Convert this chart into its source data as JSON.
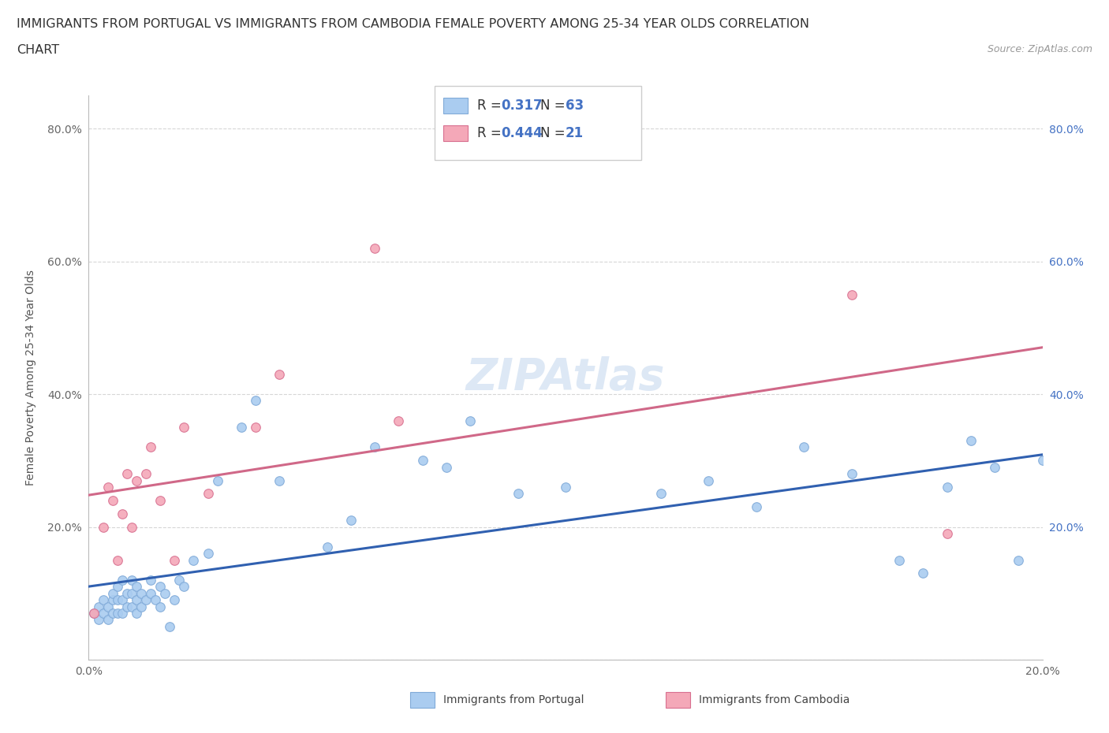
{
  "title_line1": "IMMIGRANTS FROM PORTUGAL VS IMMIGRANTS FROM CAMBODIA FEMALE POVERTY AMONG 25-34 YEAR OLDS CORRELATION",
  "title_line2": "CHART",
  "source_text": "Source: ZipAtlas.com",
  "ylabel": "Female Poverty Among 25-34 Year Olds",
  "xlim": [
    0.0,
    0.2
  ],
  "ylim": [
    0.0,
    0.85
  ],
  "yticks": [
    0.0,
    0.2,
    0.4,
    0.6,
    0.8
  ],
  "xticks": [
    0.0,
    0.05,
    0.1,
    0.15,
    0.2
  ],
  "ytick_labels_left": [
    "",
    "20.0%",
    "40.0%",
    "60.0%",
    "80.0%"
  ],
  "ytick_labels_right": [
    "",
    "20.0%",
    "40.0%",
    "60.0%",
    "80.0%"
  ],
  "xtick_labels": [
    "0.0%",
    "",
    "",
    "",
    "20.0%"
  ],
  "watermark": "ZIPAtlas",
  "portugal_color": "#aaccf0",
  "portugal_edge": "#80aad8",
  "cambodia_color": "#f4a8b8",
  "cambodia_edge": "#d87090",
  "portugal_line_color": "#3060b0",
  "cambodia_line_color": "#d06888",
  "R_portugal": 0.317,
  "N_portugal": 63,
  "R_cambodia": 0.444,
  "N_cambodia": 21,
  "portugal_x": [
    0.001,
    0.002,
    0.002,
    0.003,
    0.003,
    0.004,
    0.004,
    0.005,
    0.005,
    0.005,
    0.006,
    0.006,
    0.006,
    0.007,
    0.007,
    0.007,
    0.008,
    0.008,
    0.009,
    0.009,
    0.009,
    0.01,
    0.01,
    0.01,
    0.011,
    0.011,
    0.012,
    0.013,
    0.013,
    0.014,
    0.015,
    0.015,
    0.016,
    0.017,
    0.018,
    0.019,
    0.02,
    0.022,
    0.025,
    0.027,
    0.032,
    0.035,
    0.04,
    0.05,
    0.055,
    0.06,
    0.07,
    0.075,
    0.08,
    0.09,
    0.1,
    0.12,
    0.13,
    0.14,
    0.15,
    0.16,
    0.17,
    0.175,
    0.18,
    0.185,
    0.19,
    0.195,
    0.2
  ],
  "portugal_y": [
    0.07,
    0.06,
    0.08,
    0.07,
    0.09,
    0.06,
    0.08,
    0.07,
    0.09,
    0.1,
    0.07,
    0.09,
    0.11,
    0.07,
    0.09,
    0.12,
    0.08,
    0.1,
    0.08,
    0.1,
    0.12,
    0.07,
    0.09,
    0.11,
    0.08,
    0.1,
    0.09,
    0.1,
    0.12,
    0.09,
    0.08,
    0.11,
    0.1,
    0.05,
    0.09,
    0.12,
    0.11,
    0.15,
    0.16,
    0.27,
    0.35,
    0.39,
    0.27,
    0.17,
    0.21,
    0.32,
    0.3,
    0.29,
    0.36,
    0.25,
    0.26,
    0.25,
    0.27,
    0.23,
    0.32,
    0.28,
    0.15,
    0.13,
    0.26,
    0.33,
    0.29,
    0.15,
    0.3
  ],
  "cambodia_x": [
    0.001,
    0.003,
    0.004,
    0.005,
    0.006,
    0.007,
    0.008,
    0.009,
    0.01,
    0.012,
    0.013,
    0.015,
    0.018,
    0.02,
    0.025,
    0.035,
    0.04,
    0.06,
    0.065,
    0.16,
    0.18
  ],
  "cambodia_y": [
    0.07,
    0.2,
    0.26,
    0.24,
    0.15,
    0.22,
    0.28,
    0.2,
    0.27,
    0.28,
    0.32,
    0.24,
    0.15,
    0.35,
    0.25,
    0.35,
    0.43,
    0.62,
    0.36,
    0.55,
    0.19
  ],
  "background_color": "#ffffff",
  "grid_color": "#cccccc",
  "title_fontsize": 11.5,
  "axis_label_fontsize": 10,
  "tick_fontsize": 10,
  "marker_size": 70,
  "watermark_fontsize": 40,
  "watermark_color": "#dde8f5",
  "right_ytick_color": "#4472c4",
  "legend_R_color": "#4472c4",
  "legend_text_color": "#333333"
}
